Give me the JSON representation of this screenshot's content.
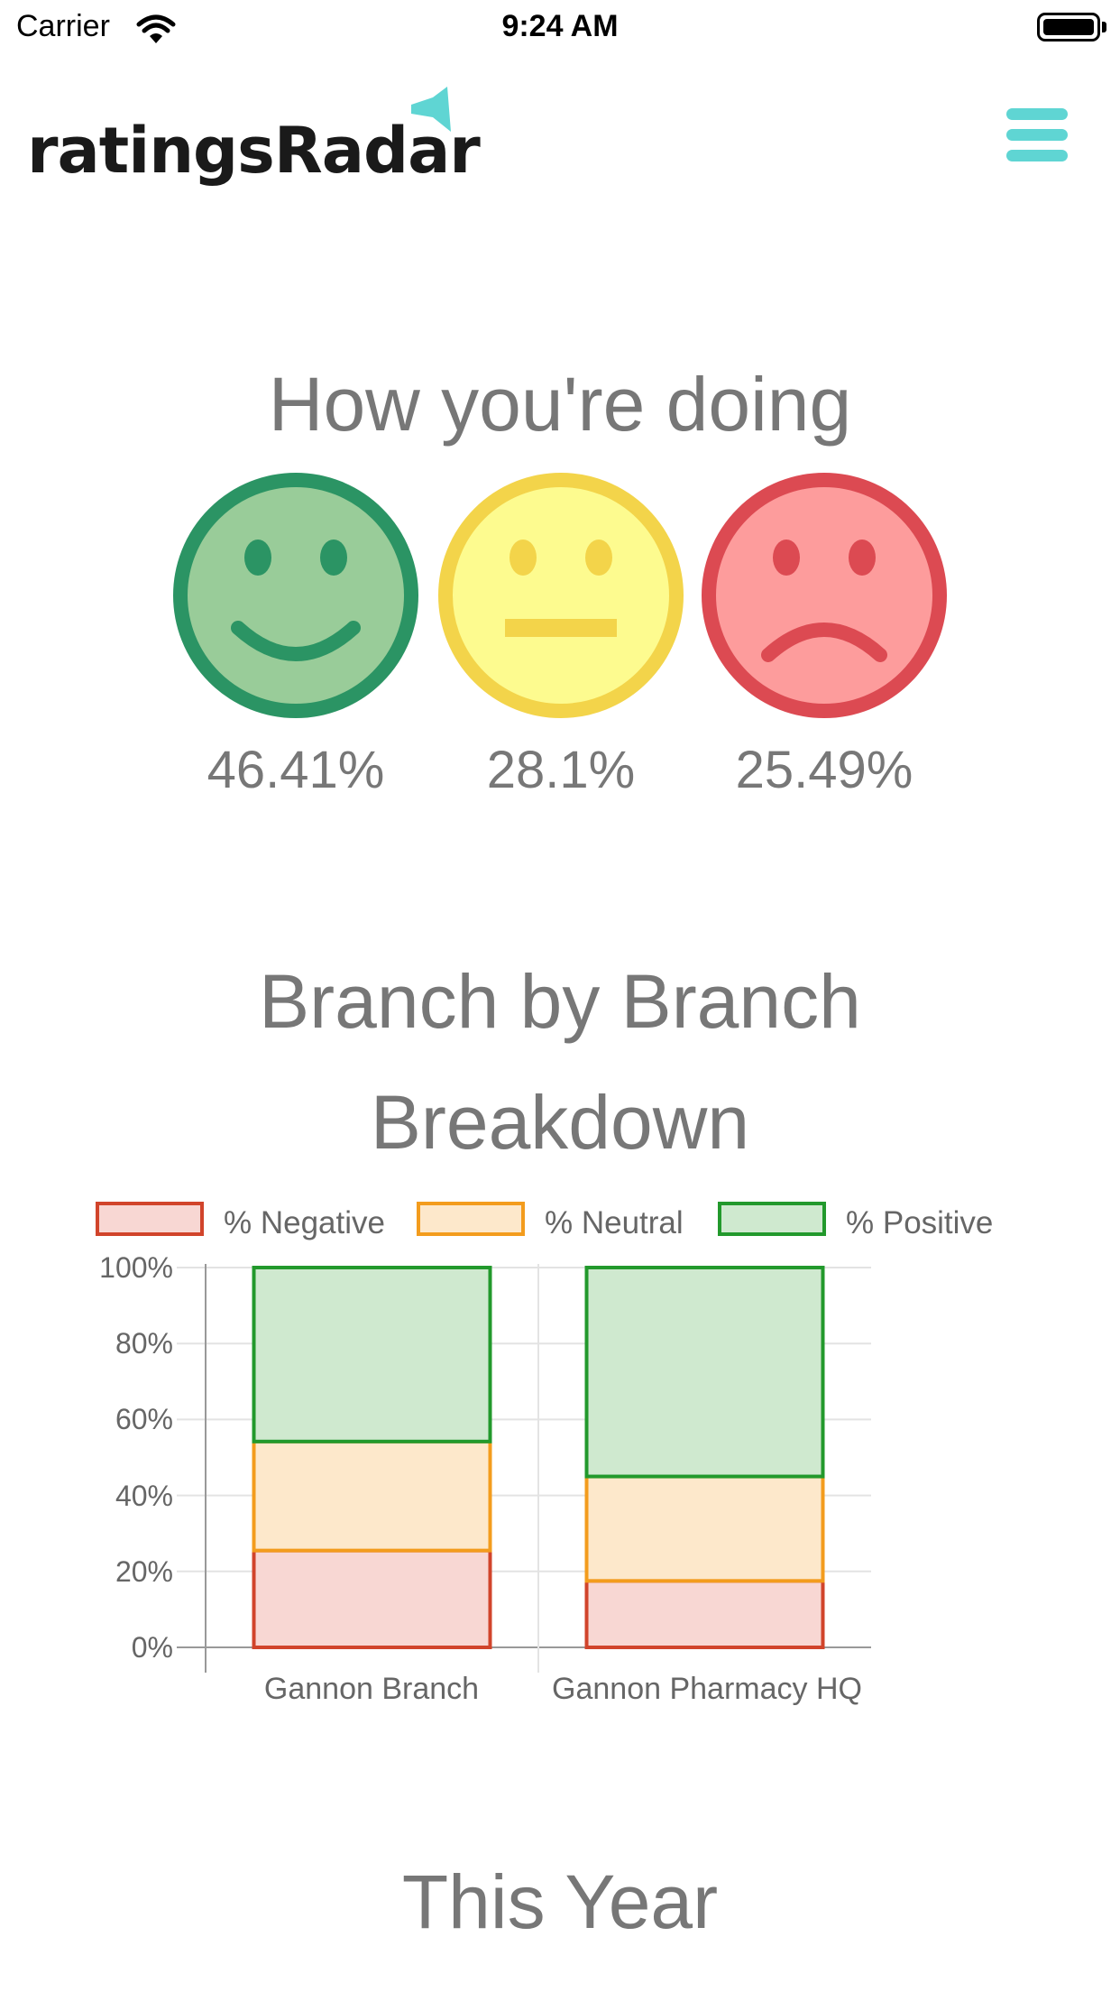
{
  "status_bar": {
    "carrier": "Carrier",
    "time": "9:24 AM"
  },
  "header": {
    "logo_text": "ratingsRadar",
    "menu_icon": "hamburger-menu-icon",
    "brand_color": "#5fd5d3"
  },
  "summary": {
    "title": "How you're doing",
    "faces": [
      {
        "icon": "happy-face-icon",
        "percent": "46.41%",
        "fill": "#99cc99",
        "stroke": "#2b9464"
      },
      {
        "icon": "neutral-face-icon",
        "percent": "28.1%",
        "fill": "#fdfb8f",
        "stroke": "#f3d44a"
      },
      {
        "icon": "sad-face-icon",
        "percent": "25.49%",
        "fill": "#fd9c9c",
        "stroke": "#dc4a52"
      }
    ]
  },
  "breakdown": {
    "title_line1": "Branch by Branch",
    "title_line2": "Breakdown"
  },
  "chart_data": {
    "type": "bar",
    "stacked": true,
    "categories": [
      "Gannon Branch",
      "Gannon Pharmacy HQ"
    ],
    "series": [
      {
        "name": "% Negative",
        "values": [
          25.5,
          17.5
        ],
        "fill": "#f8d7d3",
        "stroke": "#d1442b"
      },
      {
        "name": "% Neutral",
        "values": [
          28.7,
          27.5
        ],
        "fill": "#fde8cb",
        "stroke": "#f39c1d"
      },
      {
        "name": "% Positive",
        "values": [
          45.8,
          55.0
        ],
        "fill": "#cfe9cf",
        "stroke": "#22992c"
      }
    ],
    "y_ticks": [
      "100%",
      "80%",
      "60%",
      "40%",
      "20%",
      "0%"
    ],
    "ylim": [
      0,
      100
    ],
    "grid": true,
    "legend_position": "top"
  },
  "this_year": {
    "title": "This Year"
  }
}
